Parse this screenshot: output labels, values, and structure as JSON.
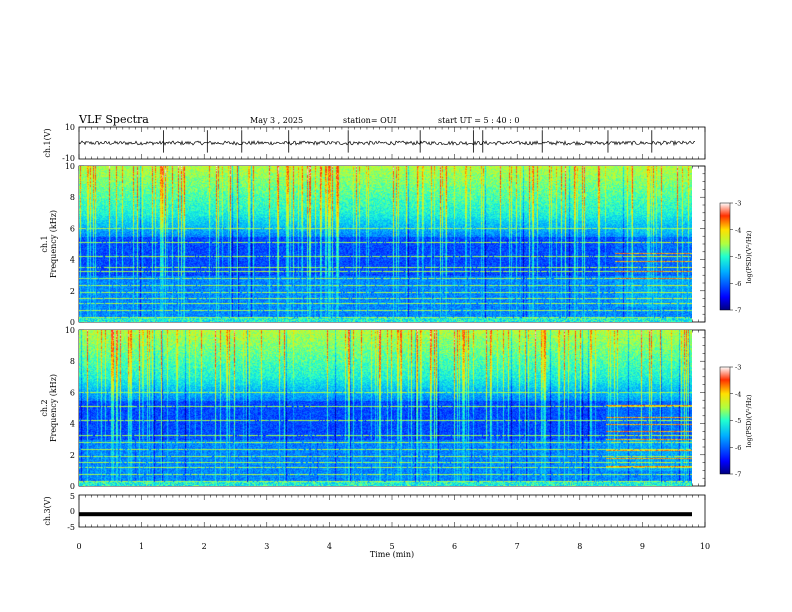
{
  "header": {
    "title": "VLF Spectra",
    "date": "May 3 , 2025",
    "station": "station= OUI",
    "start_time": "start UT = 5 : 40 : 0"
  },
  "chart_data": [
    {
      "type": "line",
      "panel": "ch1-waveform",
      "ylabel": "ch.1(V)",
      "ylim": [
        -10,
        10
      ],
      "yticks": [
        "10",
        "-10"
      ],
      "xlim": [
        0,
        10
      ],
      "baseline": 0,
      "noise_amplitude": 1.2,
      "spikes_min": [
        1.35,
        2.05,
        2.6,
        3.35,
        4.3,
        5.45,
        6.3,
        6.45,
        7.4,
        8.45,
        9.15
      ]
    },
    {
      "type": "heatmap",
      "panel": "ch1-spectrogram",
      "ylabel": "ch.1 Frequency (kHz)",
      "ylim": [
        0,
        10
      ],
      "yticks": [
        "0",
        "2",
        "4",
        "6",
        "8",
        "10"
      ],
      "xlim": [
        0,
        9.85
      ],
      "colorbar": {
        "label": "log(PSD)(V²/Hz)",
        "range": [
          -7,
          -3
        ],
        "ticks": [
          "-3",
          "-4",
          "-5",
          "-6",
          "-7"
        ]
      },
      "lines_khz": [
        0.35,
        0.75,
        1.2,
        1.55,
        1.9,
        2.35,
        2.8,
        3.3,
        3.55,
        4.2,
        5.1,
        6.05
      ],
      "late_band_start_min": 8.6,
      "late_lines_khz": [
        2.8,
        3.3,
        3.9,
        4.4
      ]
    },
    {
      "type": "heatmap",
      "panel": "ch2-spectrogram",
      "ylabel": "ch.2 Frequency (kHz)",
      "ylim": [
        0,
        10
      ],
      "yticks": [
        "0",
        "2",
        "4",
        "6",
        "8",
        "10"
      ],
      "xlim": [
        0,
        9.85
      ],
      "colorbar": {
        "label": "log(PSD)(V²/Hz)",
        "range": [
          -7,
          -3
        ],
        "ticks": [
          "-3",
          "-4",
          "-5",
          "-6",
          "-7"
        ]
      },
      "lines_khz": [
        0.35,
        0.75,
        1.2,
        1.55,
        1.9,
        2.35,
        2.8,
        3.3,
        4.2,
        5.1,
        6.05
      ],
      "late_band_start_min": 8.45,
      "late_lines_khz": [
        1.3,
        1.8,
        2.3,
        3.0,
        3.5,
        4.0,
        4.4,
        5.2
      ]
    },
    {
      "type": "line",
      "panel": "ch3-waveform",
      "ylabel": "ch.3(V)",
      "ylim": [
        -5,
        5
      ],
      "yticks": [
        "5",
        "0",
        "-5"
      ],
      "xlim": [
        0,
        10
      ],
      "value": -1
    }
  ],
  "xaxis": {
    "label": "Time (min)",
    "ticks": [
      "0",
      "1",
      "2",
      "3",
      "4",
      "5",
      "6",
      "7",
      "8",
      "9",
      "10"
    ]
  }
}
